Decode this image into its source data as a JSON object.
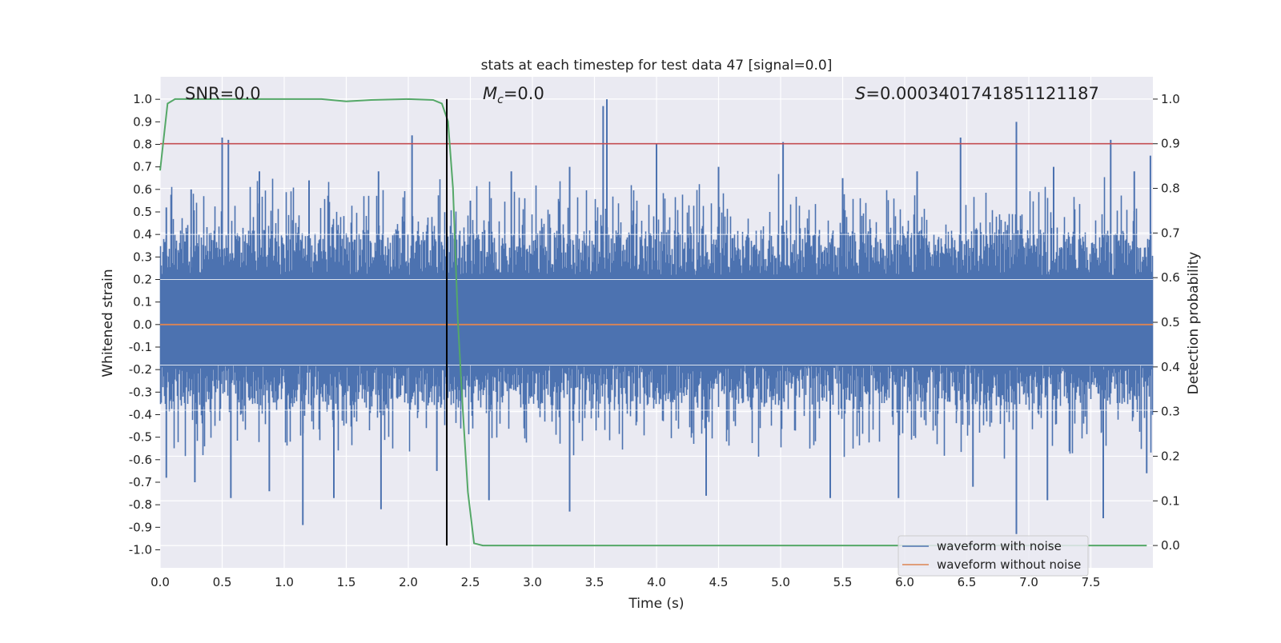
{
  "chart_data": {
    "type": "line",
    "title": "stats at each timestep for test data 47 [signal=0.0]",
    "xlabel": "Time (s)",
    "ylabel": "Whitened strain",
    "y2label": "Detection probability",
    "xlim": [
      0.0,
      8.0
    ],
    "ylim": [
      -1.08,
      1.1
    ],
    "y2lim": [
      -0.05,
      1.05
    ],
    "x_ticks": [
      "0.0",
      "0.5",
      "1.0",
      "1.5",
      "2.0",
      "2.5",
      "3.0",
      "3.5",
      "4.0",
      "4.5",
      "5.0",
      "5.5",
      "6.0",
      "6.5",
      "7.0",
      "7.5"
    ],
    "y_ticks": [
      "1.0",
      "0.9",
      "0.8",
      "0.7",
      "0.6",
      "0.5",
      "0.4",
      "0.3",
      "0.2",
      "0.1",
      "0.0",
      "-0.1",
      "-0.2",
      "-0.3",
      "-0.4",
      "-0.5",
      "-0.6",
      "-0.7",
      "-0.8",
      "-0.9",
      "-1.0"
    ],
    "y2_ticks": [
      "1.0",
      "0.9",
      "0.8",
      "0.7",
      "0.6",
      "0.5",
      "0.4",
      "0.3",
      "0.2",
      "0.1",
      "0.0"
    ],
    "grid": true,
    "legend_position": "bottom-right",
    "annotations": {
      "snr": "SNR=0.0",
      "mc_symbol": "M",
      "mc_sub": "c",
      "mc_value": "=0.0",
      "s_symbol": "S",
      "s_value": "=0.0003401741851121187"
    },
    "series": [
      {
        "name": "waveform with noise",
        "color": "#4c72b0",
        "axis": "left",
        "peaks_up": [
          [
            0.05,
            0.52
          ],
          [
            0.25,
            0.6
          ],
          [
            0.5,
            0.83
          ],
          [
            0.55,
            0.82
          ],
          [
            0.8,
            0.68
          ],
          [
            1.2,
            0.64
          ],
          [
            1.76,
            0.68
          ],
          [
            2.03,
            0.84
          ],
          [
            2.5,
            0.55
          ],
          [
            2.83,
            0.68
          ],
          [
            3.3,
            0.7
          ],
          [
            3.57,
            0.97
          ],
          [
            3.6,
            1.0
          ],
          [
            4.0,
            0.8
          ],
          [
            4.5,
            0.7
          ],
          [
            5.02,
            0.81
          ],
          [
            5.5,
            0.65
          ],
          [
            6.1,
            0.68
          ],
          [
            6.45,
            0.83
          ],
          [
            6.9,
            0.9
          ],
          [
            7.2,
            0.7
          ],
          [
            7.66,
            0.82
          ],
          [
            7.85,
            0.68
          ],
          [
            7.98,
            0.75
          ]
        ],
        "peaks_down": [
          [
            0.05,
            -0.68
          ],
          [
            0.28,
            -0.7
          ],
          [
            0.57,
            -0.77
          ],
          [
            0.88,
            -0.74
          ],
          [
            1.15,
            -0.89
          ],
          [
            1.4,
            -0.77
          ],
          [
            1.78,
            -0.82
          ],
          [
            2.23,
            -0.65
          ],
          [
            2.65,
            -0.78
          ],
          [
            3.3,
            -0.83
          ],
          [
            4.4,
            -0.76
          ],
          [
            5.4,
            -0.77
          ],
          [
            5.95,
            -0.77
          ],
          [
            6.55,
            -0.72
          ],
          [
            6.9,
            -0.93
          ],
          [
            7.15,
            -0.78
          ],
          [
            7.6,
            -0.86
          ],
          [
            7.95,
            -0.66
          ]
        ]
      },
      {
        "name": "waveform without noise",
        "color": "#dd8452",
        "axis": "left",
        "x": [
          0.0,
          8.0
        ],
        "y": [
          0.0,
          0.0
        ]
      },
      {
        "name": "",
        "color": "#55a868",
        "axis": "right",
        "x": [
          0.0,
          0.06,
          0.12,
          0.3,
          0.6,
          1.0,
          1.3,
          1.5,
          1.7,
          2.0,
          2.2,
          2.27,
          2.32,
          2.36,
          2.4,
          2.44,
          2.48,
          2.53,
          2.6,
          3.0,
          4.0,
          5.0,
          6.0,
          7.0,
          7.95
        ],
        "y": [
          0.84,
          0.99,
          1.0,
          1.0,
          1.0,
          1.0,
          1.0,
          0.995,
          0.998,
          1.0,
          0.998,
          0.99,
          0.95,
          0.8,
          0.5,
          0.3,
          0.12,
          0.005,
          0.0,
          0.0,
          0.0,
          0.0,
          0.0,
          0.0,
          0.0
        ]
      }
    ],
    "threshold_line": {
      "axis": "right",
      "value": 0.9,
      "color": "#c44e52"
    },
    "marker_line": {
      "x": 2.31,
      "y_from": 0.0,
      "y_to": 1.0,
      "axis": "right",
      "color": "#000000"
    }
  }
}
